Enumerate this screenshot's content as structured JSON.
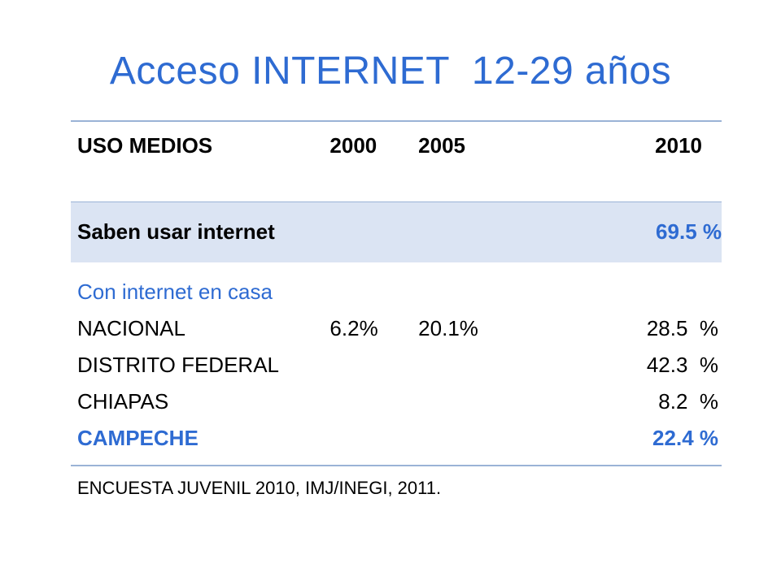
{
  "title": "Acceso INTERNET  12-29 años",
  "table": {
    "headers": [
      "USO MEDIOS",
      "2000",
      "2005",
      "2010"
    ],
    "saben": {
      "label": "Saben usar internet",
      "v2000": "",
      "v2005": "",
      "v2010": "69.5  %"
    },
    "casa": {
      "heading": "Con internet en casa",
      "rows": [
        {
          "label": "NACIONAL",
          "v2000": "6.2%",
          "v2005": "20.1%",
          "v2010": "28.5  %"
        },
        {
          "label": "DISTRITO FEDERAL",
          "v2000": "",
          "v2005": "",
          "v2010": "42.3  %"
        },
        {
          "label": "CHIAPAS",
          "v2000": "",
          "v2005": "",
          "v2010": "8.2  %"
        },
        {
          "label": "CAMPECHE",
          "v2000": "",
          "v2005": "",
          "v2010": "22.4 %"
        }
      ]
    }
  },
  "source": "ENCUESTA JUVENIL 2010, IMJ/INEGI, 2011.",
  "colors": {
    "accent": "#2e6bd2",
    "header_rule": "#9ab3d6",
    "band": "#dbe4f3"
  }
}
